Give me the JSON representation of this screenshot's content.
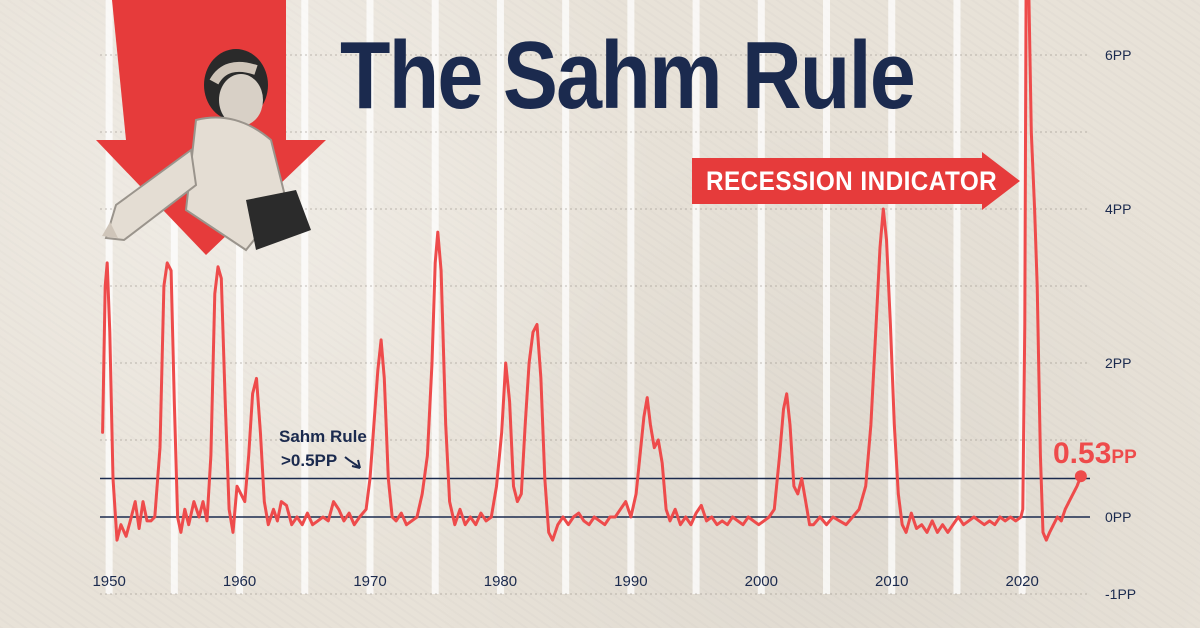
{
  "title": "The Sahm Rule",
  "subtitle": "RECESSION INDICATOR",
  "annotation": {
    "line1": "Sahm Rule",
    "line2": ">0.5PP"
  },
  "latest_label": {
    "value": "0.53",
    "unit": "PP"
  },
  "colors": {
    "line": "#ee4b4b",
    "navy": "#1b2a4e",
    "red": "#e63b3b",
    "grid": "#ffffff"
  },
  "chart_data": {
    "type": "line",
    "title": "The Sahm Rule",
    "xlabel": "",
    "ylabel": "",
    "xlim": [
      1949.3,
      2025.2
    ],
    "ylim": [
      -1,
      6.8
    ],
    "x_ticks": [
      {
        "value": 1950,
        "label": "1950"
      },
      {
        "value": 1960,
        "label": "1960"
      },
      {
        "value": 1970,
        "label": "1970"
      },
      {
        "value": 1980,
        "label": "1980"
      },
      {
        "value": 1990,
        "label": "1990"
      },
      {
        "value": 2000,
        "label": "2000"
      },
      {
        "value": 2010,
        "label": "2010"
      },
      {
        "value": 2020,
        "label": "2020"
      }
    ],
    "y_ticks": [
      {
        "value": 6,
        "label": "6PP"
      },
      {
        "value": 4,
        "label": "4PP"
      },
      {
        "value": 2,
        "label": "2PP"
      },
      {
        "value": 0,
        "label": "0PP"
      },
      {
        "value": -1,
        "label": "-1PP"
      }
    ],
    "threshold": 0.5,
    "grid": true,
    "series": [
      {
        "points": [
          [
            1949.5,
            1.1
          ],
          [
            1949.7,
            3.0
          ],
          [
            1949.85,
            3.3
          ],
          [
            1950.05,
            2.4
          ],
          [
            1950.3,
            0.5
          ],
          [
            1950.6,
            -0.3
          ],
          [
            1950.9,
            -0.1
          ],
          [
            1951.3,
            -0.25
          ],
          [
            1951.7,
            0.0
          ],
          [
            1952.0,
            0.2
          ],
          [
            1952.3,
            -0.15
          ],
          [
            1952.6,
            0.2
          ],
          [
            1952.9,
            -0.05
          ],
          [
            1953.2,
            -0.05
          ],
          [
            1953.5,
            0.0
          ],
          [
            1953.9,
            0.9
          ],
          [
            1954.2,
            3.0
          ],
          [
            1954.45,
            3.3
          ],
          [
            1954.75,
            3.2
          ],
          [
            1955.0,
            1.5
          ],
          [
            1955.25,
            0.0
          ],
          [
            1955.5,
            -0.2
          ],
          [
            1955.8,
            0.1
          ],
          [
            1956.1,
            -0.1
          ],
          [
            1956.5,
            0.2
          ],
          [
            1956.9,
            0.0
          ],
          [
            1957.2,
            0.2
          ],
          [
            1957.5,
            -0.05
          ],
          [
            1957.8,
            0.8
          ],
          [
            1958.1,
            2.9
          ],
          [
            1958.35,
            3.25
          ],
          [
            1958.6,
            3.1
          ],
          [
            1958.9,
            1.5
          ],
          [
            1959.2,
            0.1
          ],
          [
            1959.5,
            -0.2
          ],
          [
            1959.8,
            0.4
          ],
          [
            1960.1,
            0.3
          ],
          [
            1960.4,
            0.2
          ],
          [
            1960.7,
            0.8
          ],
          [
            1961.0,
            1.6
          ],
          [
            1961.3,
            1.8
          ],
          [
            1961.6,
            1.1
          ],
          [
            1961.9,
            0.2
          ],
          [
            1962.2,
            -0.1
          ],
          [
            1962.6,
            0.1
          ],
          [
            1962.9,
            -0.05
          ],
          [
            1963.2,
            0.2
          ],
          [
            1963.6,
            0.15
          ],
          [
            1964.0,
            -0.1
          ],
          [
            1964.4,
            0.0
          ],
          [
            1964.8,
            -0.1
          ],
          [
            1965.2,
            0.05
          ],
          [
            1965.6,
            -0.1
          ],
          [
            1966.0,
            -0.05
          ],
          [
            1966.4,
            0.0
          ],
          [
            1966.8,
            -0.05
          ],
          [
            1967.2,
            0.2
          ],
          [
            1967.6,
            0.1
          ],
          [
            1968.0,
            -0.05
          ],
          [
            1968.4,
            0.05
          ],
          [
            1968.8,
            -0.1
          ],
          [
            1969.2,
            0.0
          ],
          [
            1969.7,
            0.1
          ],
          [
            1970.0,
            0.5
          ],
          [
            1970.3,
            1.2
          ],
          [
            1970.6,
            1.9
          ],
          [
            1970.85,
            2.3
          ],
          [
            1971.1,
            1.8
          ],
          [
            1971.4,
            0.5
          ],
          [
            1971.7,
            0.0
          ],
          [
            1972.0,
            -0.05
          ],
          [
            1972.4,
            0.05
          ],
          [
            1972.8,
            -0.1
          ],
          [
            1973.2,
            -0.05
          ],
          [
            1973.6,
            0.0
          ],
          [
            1974.0,
            0.3
          ],
          [
            1974.4,
            0.8
          ],
          [
            1974.75,
            2.0
          ],
          [
            1975.0,
            3.3
          ],
          [
            1975.2,
            3.7
          ],
          [
            1975.45,
            3.2
          ],
          [
            1975.8,
            1.2
          ],
          [
            1976.1,
            0.2
          ],
          [
            1976.5,
            -0.1
          ],
          [
            1976.9,
            0.1
          ],
          [
            1977.3,
            -0.1
          ],
          [
            1977.7,
            0.0
          ],
          [
            1978.1,
            -0.1
          ],
          [
            1978.5,
            0.05
          ],
          [
            1978.9,
            -0.05
          ],
          [
            1979.3,
            0.0
          ],
          [
            1979.7,
            0.4
          ],
          [
            1980.1,
            1.1
          ],
          [
            1980.4,
            2.0
          ],
          [
            1980.7,
            1.5
          ],
          [
            1981.0,
            0.4
          ],
          [
            1981.3,
            0.2
          ],
          [
            1981.6,
            0.3
          ],
          [
            1981.9,
            1.2
          ],
          [
            1982.2,
            2.0
          ],
          [
            1982.5,
            2.4
          ],
          [
            1982.8,
            2.5
          ],
          [
            1983.1,
            1.8
          ],
          [
            1983.4,
            0.5
          ],
          [
            1983.7,
            -0.2
          ],
          [
            1984.0,
            -0.3
          ],
          [
            1984.4,
            -0.1
          ],
          [
            1984.8,
            0.0
          ],
          [
            1985.2,
            -0.1
          ],
          [
            1985.6,
            0.0
          ],
          [
            1986.0,
            0.05
          ],
          [
            1986.4,
            -0.05
          ],
          [
            1986.8,
            -0.1
          ],
          [
            1987.2,
            0.0
          ],
          [
            1987.6,
            -0.05
          ],
          [
            1988.0,
            -0.1
          ],
          [
            1988.4,
            0.0
          ],
          [
            1988.8,
            0.0
          ],
          [
            1989.2,
            0.1
          ],
          [
            1989.6,
            0.2
          ],
          [
            1990.0,
            0.0
          ],
          [
            1990.4,
            0.3
          ],
          [
            1990.7,
            0.8
          ],
          [
            1991.0,
            1.3
          ],
          [
            1991.25,
            1.55
          ],
          [
            1991.5,
            1.2
          ],
          [
            1991.8,
            0.9
          ],
          [
            1992.1,
            1.0
          ],
          [
            1992.4,
            0.7
          ],
          [
            1992.7,
            0.1
          ],
          [
            1993.0,
            -0.05
          ],
          [
            1993.4,
            0.1
          ],
          [
            1993.8,
            -0.1
          ],
          [
            1994.2,
            0.0
          ],
          [
            1994.6,
            -0.1
          ],
          [
            1995.0,
            0.05
          ],
          [
            1995.4,
            0.15
          ],
          [
            1995.8,
            -0.05
          ],
          [
            1996.2,
            0.0
          ],
          [
            1996.6,
            -0.1
          ],
          [
            1997.0,
            -0.05
          ],
          [
            1997.4,
            -0.1
          ],
          [
            1997.8,
            0.0
          ],
          [
            1998.2,
            -0.05
          ],
          [
            1998.6,
            -0.1
          ],
          [
            1999.0,
            0.0
          ],
          [
            1999.4,
            -0.05
          ],
          [
            1999.8,
            -0.1
          ],
          [
            2000.2,
            -0.05
          ],
          [
            2000.6,
            0.0
          ],
          [
            2001.0,
            0.1
          ],
          [
            2001.4,
            0.8
          ],
          [
            2001.7,
            1.4
          ],
          [
            2001.95,
            1.6
          ],
          [
            2002.2,
            1.2
          ],
          [
            2002.5,
            0.4
          ],
          [
            2002.8,
            0.3
          ],
          [
            2003.1,
            0.5
          ],
          [
            2003.4,
            0.2
          ],
          [
            2003.7,
            -0.1
          ],
          [
            2004.0,
            -0.1
          ],
          [
            2004.5,
            0.0
          ],
          [
            2005.0,
            -0.1
          ],
          [
            2005.5,
            0.0
          ],
          [
            2006.0,
            -0.05
          ],
          [
            2006.5,
            -0.1
          ],
          [
            2007.0,
            0.0
          ],
          [
            2007.5,
            0.1
          ],
          [
            2008.0,
            0.4
          ],
          [
            2008.4,
            1.2
          ],
          [
            2008.8,
            2.5
          ],
          [
            2009.1,
            3.5
          ],
          [
            2009.35,
            4.0
          ],
          [
            2009.6,
            3.6
          ],
          [
            2009.9,
            2.5
          ],
          [
            2010.2,
            1.2
          ],
          [
            2010.5,
            0.3
          ],
          [
            2010.8,
            -0.1
          ],
          [
            2011.1,
            -0.2
          ],
          [
            2011.5,
            0.05
          ],
          [
            2011.9,
            -0.15
          ],
          [
            2012.3,
            -0.1
          ],
          [
            2012.7,
            -0.2
          ],
          [
            2013.1,
            -0.05
          ],
          [
            2013.5,
            -0.2
          ],
          [
            2013.9,
            -0.1
          ],
          [
            2014.3,
            -0.2
          ],
          [
            2014.7,
            -0.1
          ],
          [
            2015.1,
            0.0
          ],
          [
            2015.5,
            -0.1
          ],
          [
            2015.9,
            -0.05
          ],
          [
            2016.3,
            0.0
          ],
          [
            2016.7,
            -0.05
          ],
          [
            2017.1,
            -0.1
          ],
          [
            2017.5,
            -0.05
          ],
          [
            2017.9,
            -0.1
          ],
          [
            2018.3,
            0.0
          ],
          [
            2018.7,
            -0.05
          ],
          [
            2019.1,
            0.0
          ],
          [
            2019.5,
            -0.05
          ],
          [
            2019.9,
            0.0
          ],
          [
            2020.05,
            0.1
          ],
          [
            2020.2,
            2.5
          ],
          [
            2020.3,
            6.9
          ],
          [
            2020.5,
            6.9
          ],
          [
            2020.7,
            5.0
          ],
          [
            2020.95,
            4.0
          ],
          [
            2021.15,
            3.0
          ],
          [
            2021.4,
            0.8
          ],
          [
            2021.6,
            -0.2
          ],
          [
            2021.85,
            -0.3
          ],
          [
            2022.1,
            -0.2
          ],
          [
            2022.4,
            -0.1
          ],
          [
            2022.7,
            0.0
          ],
          [
            2023.0,
            -0.05
          ],
          [
            2023.3,
            0.1
          ],
          [
            2023.6,
            0.2
          ],
          [
            2023.9,
            0.3
          ],
          [
            2024.2,
            0.4
          ],
          [
            2024.5,
            0.53
          ]
        ]
      }
    ]
  }
}
